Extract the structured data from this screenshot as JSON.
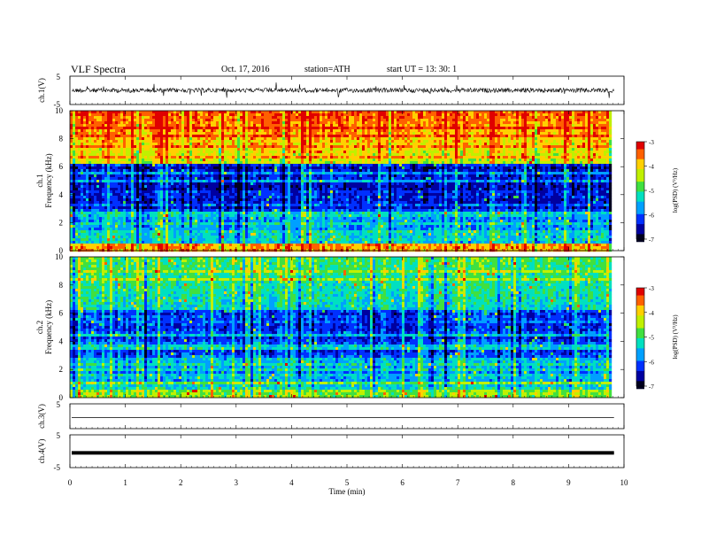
{
  "header": {
    "title": "VLF  Spectra",
    "date": "Oct. 17, 2016",
    "station": "station=ATH",
    "start": "start  UT  =    13: 30: 1"
  },
  "chart_data": [
    {
      "type": "line",
      "panel": "ch1-waveform",
      "ylabel": "ch.1(V)",
      "ylim": [
        -5,
        5
      ],
      "yticks": [
        "5",
        "-5"
      ],
      "description_values": "continuous noisy waveform around 0 V"
    },
    {
      "type": "heatmap",
      "panel": "ch1-spectrogram",
      "ylabel": "Frequency (kHz)",
      "ylabel2": "ch.1",
      "ylim": [
        0,
        10
      ],
      "yticks": [
        "0",
        "2",
        "4",
        "6",
        "8",
        "10"
      ],
      "colorbar": {
        "label": "log(PSD) (V²/Hz)",
        "range": [
          -7,
          -3
        ],
        "ticks": [
          "-3",
          "-4",
          "-5",
          "-6",
          "-7"
        ]
      }
    },
    {
      "type": "heatmap",
      "panel": "ch2-spectrogram",
      "ylabel": "Frequency (kHz)",
      "ylabel2": "ch.2",
      "ylim": [
        0,
        10
      ],
      "yticks": [
        "0",
        "2",
        "4",
        "6",
        "8",
        "10"
      ],
      "colorbar": {
        "label": "log(PSD) (V²/Hz)",
        "range": [
          -7,
          -3
        ],
        "ticks": [
          "-3",
          "-4",
          "-5",
          "-6",
          "-7"
        ]
      }
    },
    {
      "type": "line",
      "panel": "ch3-waveform",
      "ylabel": "ch.3(V)",
      "ylim": [
        -5,
        5
      ],
      "yticks": [
        "5"
      ]
    },
    {
      "type": "line",
      "panel": "ch4-waveform",
      "ylabel": "ch.4(V)",
      "ylim": [
        -5,
        5
      ],
      "yticks": [
        "5",
        "-5"
      ]
    }
  ],
  "xaxis": {
    "label": "Time  (min)",
    "xlim": [
      0,
      10
    ],
    "ticks": [
      "0",
      "1",
      "2",
      "3",
      "4",
      "5",
      "6",
      "7",
      "8",
      "9",
      "10"
    ]
  },
  "colormap": [
    "#000020",
    "#0000a0",
    "#0030ff",
    "#00a0ff",
    "#00e0c0",
    "#40e040",
    "#c0f000",
    "#ffd000",
    "#ff6000",
    "#e00000",
    "#ffffff"
  ]
}
